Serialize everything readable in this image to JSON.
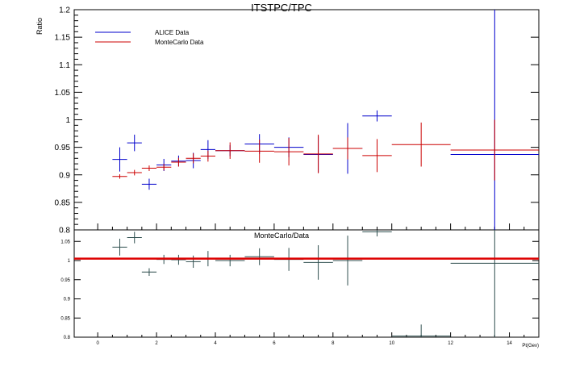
{
  "chart_data": [
    {
      "type": "scatter",
      "title": "ITSTPC/TPC",
      "xlabel": "",
      "ylabel": "Ratio",
      "xlim": [
        -0.8,
        15
      ],
      "ylim": [
        0.8,
        1.2
      ],
      "yticks": [
        "0.8",
        "0.85",
        "0.9",
        "0.95",
        "1",
        "1.05",
        "1.1",
        "1.15",
        "1.2"
      ],
      "legend_position": "top-left",
      "grid": false,
      "series": [
        {
          "name": "ALICE Data",
          "color": "#0000cc",
          "points": [
            {
              "x": 0.75,
              "xerr": 0.25,
              "y": 0.928,
              "yerr": 0.022
            },
            {
              "x": 1.25,
              "xerr": 0.25,
              "y": 0.958,
              "yerr": 0.015
            },
            {
              "x": 1.75,
              "xerr": 0.25,
              "y": 0.883,
              "yerr": 0.01
            },
            {
              "x": 2.25,
              "xerr": 0.25,
              "y": 0.918,
              "yerr": 0.011
            },
            {
              "x": 2.75,
              "xerr": 0.25,
              "y": 0.925,
              "yerr": 0.01
            },
            {
              "x": 3.25,
              "xerr": 0.25,
              "y": 0.926,
              "yerr": 0.014
            },
            {
              "x": 3.75,
              "xerr": 0.25,
              "y": 0.946,
              "yerr": 0.017
            },
            {
              "x": 4.5,
              "xerr": 0.5,
              "y": 0.944,
              "yerr": 0.01
            },
            {
              "x": 5.5,
              "xerr": 0.5,
              "y": 0.956,
              "yerr": 0.018
            },
            {
              "x": 6.5,
              "xerr": 0.5,
              "y": 0.95,
              "yerr": 0.018
            },
            {
              "x": 7.5,
              "xerr": 0.5,
              "y": 0.937,
              "yerr": 0.033
            },
            {
              "x": 8.5,
              "xerr": 0.5,
              "y": 0.948,
              "yerr": 0.046
            },
            {
              "x": 9.5,
              "xerr": 0.5,
              "y": 1.007,
              "yerr": 0.01
            },
            {
              "x": 13.5,
              "xerr": 1.5,
              "y": 0.937,
              "yerr": 0.4
            }
          ]
        },
        {
          "name": "MonteCarlo Data",
          "color": "#cc0000",
          "points": [
            {
              "x": 0.75,
              "xerr": 0.25,
              "y": 0.897,
              "yerr": 0.004
            },
            {
              "x": 1.25,
              "xerr": 0.25,
              "y": 0.904,
              "yerr": 0.005
            },
            {
              "x": 1.75,
              "xerr": 0.25,
              "y": 0.912,
              "yerr": 0.005
            },
            {
              "x": 2.25,
              "xerr": 0.25,
              "y": 0.914,
              "yerr": 0.006
            },
            {
              "x": 2.75,
              "xerr": 0.25,
              "y": 0.923,
              "yerr": 0.008
            },
            {
              "x": 3.25,
              "xerr": 0.25,
              "y": 0.93,
              "yerr": 0.009
            },
            {
              "x": 3.75,
              "xerr": 0.25,
              "y": 0.934,
              "yerr": 0.01
            },
            {
              "x": 4.5,
              "xerr": 0.5,
              "y": 0.944,
              "yerr": 0.015
            },
            {
              "x": 5.5,
              "xerr": 0.5,
              "y": 0.943,
              "yerr": 0.021
            },
            {
              "x": 6.5,
              "xerr": 0.5,
              "y": 0.942,
              "yerr": 0.025
            },
            {
              "x": 7.5,
              "xerr": 0.5,
              "y": 0.938,
              "yerr": 0.035
            },
            {
              "x": 8.5,
              "xerr": 0.5,
              "y": 0.948,
              "yerr": 0.02
            },
            {
              "x": 9.5,
              "xerr": 0.5,
              "y": 0.935,
              "yerr": 0.03
            },
            {
              "x": 11.0,
              "xerr": 1.0,
              "y": 0.955,
              "yerr": 0.04
            },
            {
              "x": 13.5,
              "xerr": 1.5,
              "y": 0.945,
              "yerr": 0.055
            }
          ]
        }
      ]
    },
    {
      "type": "scatter",
      "title": "MonteCarlo/Data",
      "xlabel": "Pt(Gev)",
      "ylabel": "",
      "xlim": [
        -0.8,
        15
      ],
      "ylim": [
        0.8,
        1.08
      ],
      "xticks": [
        "0",
        "2",
        "4",
        "6",
        "8",
        "10",
        "12",
        "14"
      ],
      "yticks": [
        "0.8",
        "0.85",
        "0.9",
        "0.95",
        "1",
        "1.05"
      ],
      "grid": false,
      "fit_line": {
        "color": "#dd0000",
        "y": 1.005
      },
      "series": [
        {
          "name": "",
          "color": "#2f4f4f",
          "points": [
            {
              "x": 0.75,
              "xerr": 0.25,
              "y": 1.035,
              "yerr": 0.022
            },
            {
              "x": 1.25,
              "xerr": 0.25,
              "y": 1.06,
              "yerr": 0.015
            },
            {
              "x": 1.75,
              "xerr": 0.25,
              "y": 0.97,
              "yerr": 0.01
            },
            {
              "x": 2.25,
              "xerr": 0.25,
              "y": 1.003,
              "yerr": 0.012
            },
            {
              "x": 2.75,
              "xerr": 0.25,
              "y": 1.002,
              "yerr": 0.013
            },
            {
              "x": 3.25,
              "xerr": 0.25,
              "y": 0.997,
              "yerr": 0.016
            },
            {
              "x": 3.75,
              "xerr": 0.25,
              "y": 1.005,
              "yerr": 0.02
            },
            {
              "x": 4.5,
              "xerr": 0.5,
              "y": 1.0,
              "yerr": 0.015
            },
            {
              "x": 5.5,
              "xerr": 0.5,
              "y": 1.01,
              "yerr": 0.022
            },
            {
              "x": 6.5,
              "xerr": 0.5,
              "y": 1.003,
              "yerr": 0.03
            },
            {
              "x": 7.5,
              "xerr": 0.5,
              "y": 0.995,
              "yerr": 0.045
            },
            {
              "x": 8.5,
              "xerr": 0.5,
              "y": 1.0,
              "yerr": 0.065
            },
            {
              "x": 9.5,
              "xerr": 0.5,
              "y": 1.075,
              "yerr": 0.012
            },
            {
              "x": 11.0,
              "xerr": 1.0,
              "y": 0.803,
              "yerr": 0.03
            },
            {
              "x": 13.5,
              "xerr": 1.5,
              "y": 0.993,
              "yerr": 0.26
            }
          ]
        }
      ]
    }
  ]
}
